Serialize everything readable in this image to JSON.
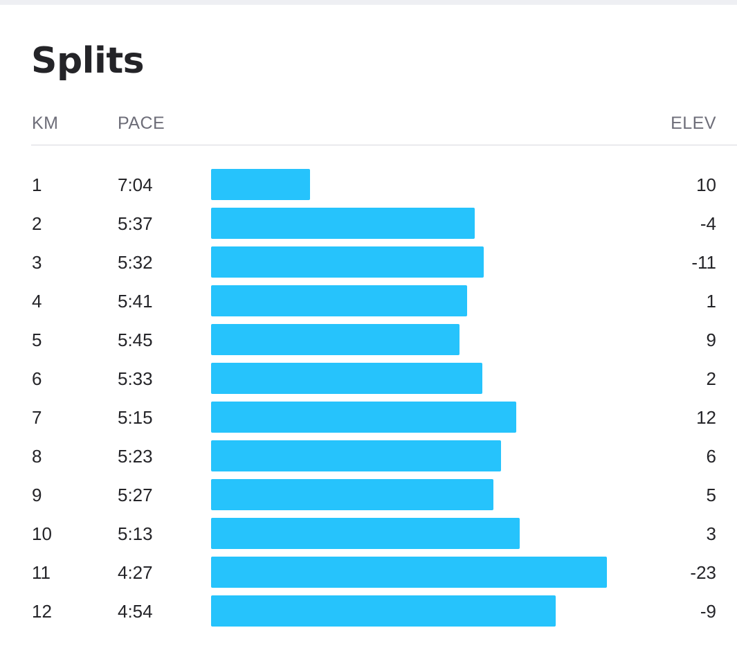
{
  "title": "Splits",
  "headers": {
    "km": "KM",
    "pace": "PACE",
    "elev": "ELEV"
  },
  "bar_color": "#26c3fc",
  "splits": [
    {
      "km": "1",
      "pace": "7:04",
      "elev": "10"
    },
    {
      "km": "2",
      "pace": "5:37",
      "elev": "-4"
    },
    {
      "km": "3",
      "pace": "5:32",
      "elev": "-11"
    },
    {
      "km": "4",
      "pace": "5:41",
      "elev": "1"
    },
    {
      "km": "5",
      "pace": "5:45",
      "elev": "9"
    },
    {
      "km": "6",
      "pace": "5:33",
      "elev": "2"
    },
    {
      "km": "7",
      "pace": "5:15",
      "elev": "12"
    },
    {
      "km": "8",
      "pace": "5:23",
      "elev": "6"
    },
    {
      "km": "9",
      "pace": "5:27",
      "elev": "5"
    },
    {
      "km": "10",
      "pace": "5:13",
      "elev": "3"
    },
    {
      "km": "11",
      "pace": "4:27",
      "elev": "-23"
    },
    {
      "km": "12",
      "pace": "4:54",
      "elev": "-9"
    }
  ]
}
